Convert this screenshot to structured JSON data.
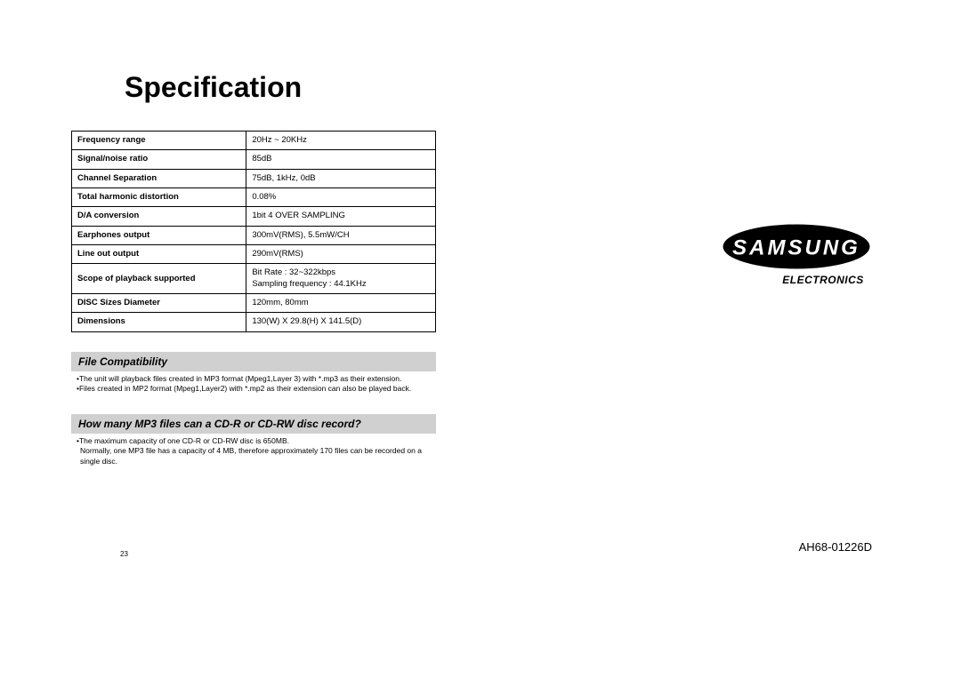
{
  "title": "Specification",
  "spec_table": {
    "rows": [
      {
        "label": "Frequency range",
        "value": "20Hz ~ 20KHz"
      },
      {
        "label": "Signal/noise ratio",
        "value": "85dB"
      },
      {
        "label": "Channel Separation",
        "value": "75dB, 1kHz, 0dB"
      },
      {
        "label": "Total harmonic distortion",
        "value": "0.08%"
      },
      {
        "label": "D/A conversion",
        "value": "1bit 4 OVER SAMPLING"
      },
      {
        "label": "Earphones output",
        "value": "300mV(RMS), 5.5mW/CH"
      },
      {
        "label": "Line out output",
        "value": "290mV(RMS)"
      },
      {
        "label": "Scope of playback supported",
        "value": "Bit Rate : 32~322kbps\nSampling frequency : 44.1KHz"
      },
      {
        "label": "DISC Sizes Diameter",
        "value": "120mm, 80mm"
      },
      {
        "label": "Dimensions",
        "value": "130(W) X 29.8(H) X 141.5(D)"
      }
    ]
  },
  "section1": {
    "header": "File Compatibility",
    "bullets": [
      "•The unit will playback files created in MP3 format (Mpeg1,Layer 3) with *.mp3 as their extension.",
      "•Files created in MP2 format (Mpeg1,Layer2) with *.mp2 as their extension can also be played back."
    ]
  },
  "section2": {
    "header": "How many MP3 files can a CD-R or CD-RW disc record?",
    "bullets": [
      "•The maximum capacity of one CD-R or CD-RW disc is 650MB.\nNormally, one MP3 file has a capacity of 4 MB, therefore approximately 170 files can be recorded on a single disc."
    ]
  },
  "page_number": "23",
  "brand": {
    "name": "SAMSUNG",
    "sub": "ELECTRONICS"
  },
  "model_number": "AH68-01226D",
  "colors": {
    "text": "#000000",
    "background": "#ffffff",
    "section_bg": "#d0d0d0",
    "border": "#000000"
  }
}
